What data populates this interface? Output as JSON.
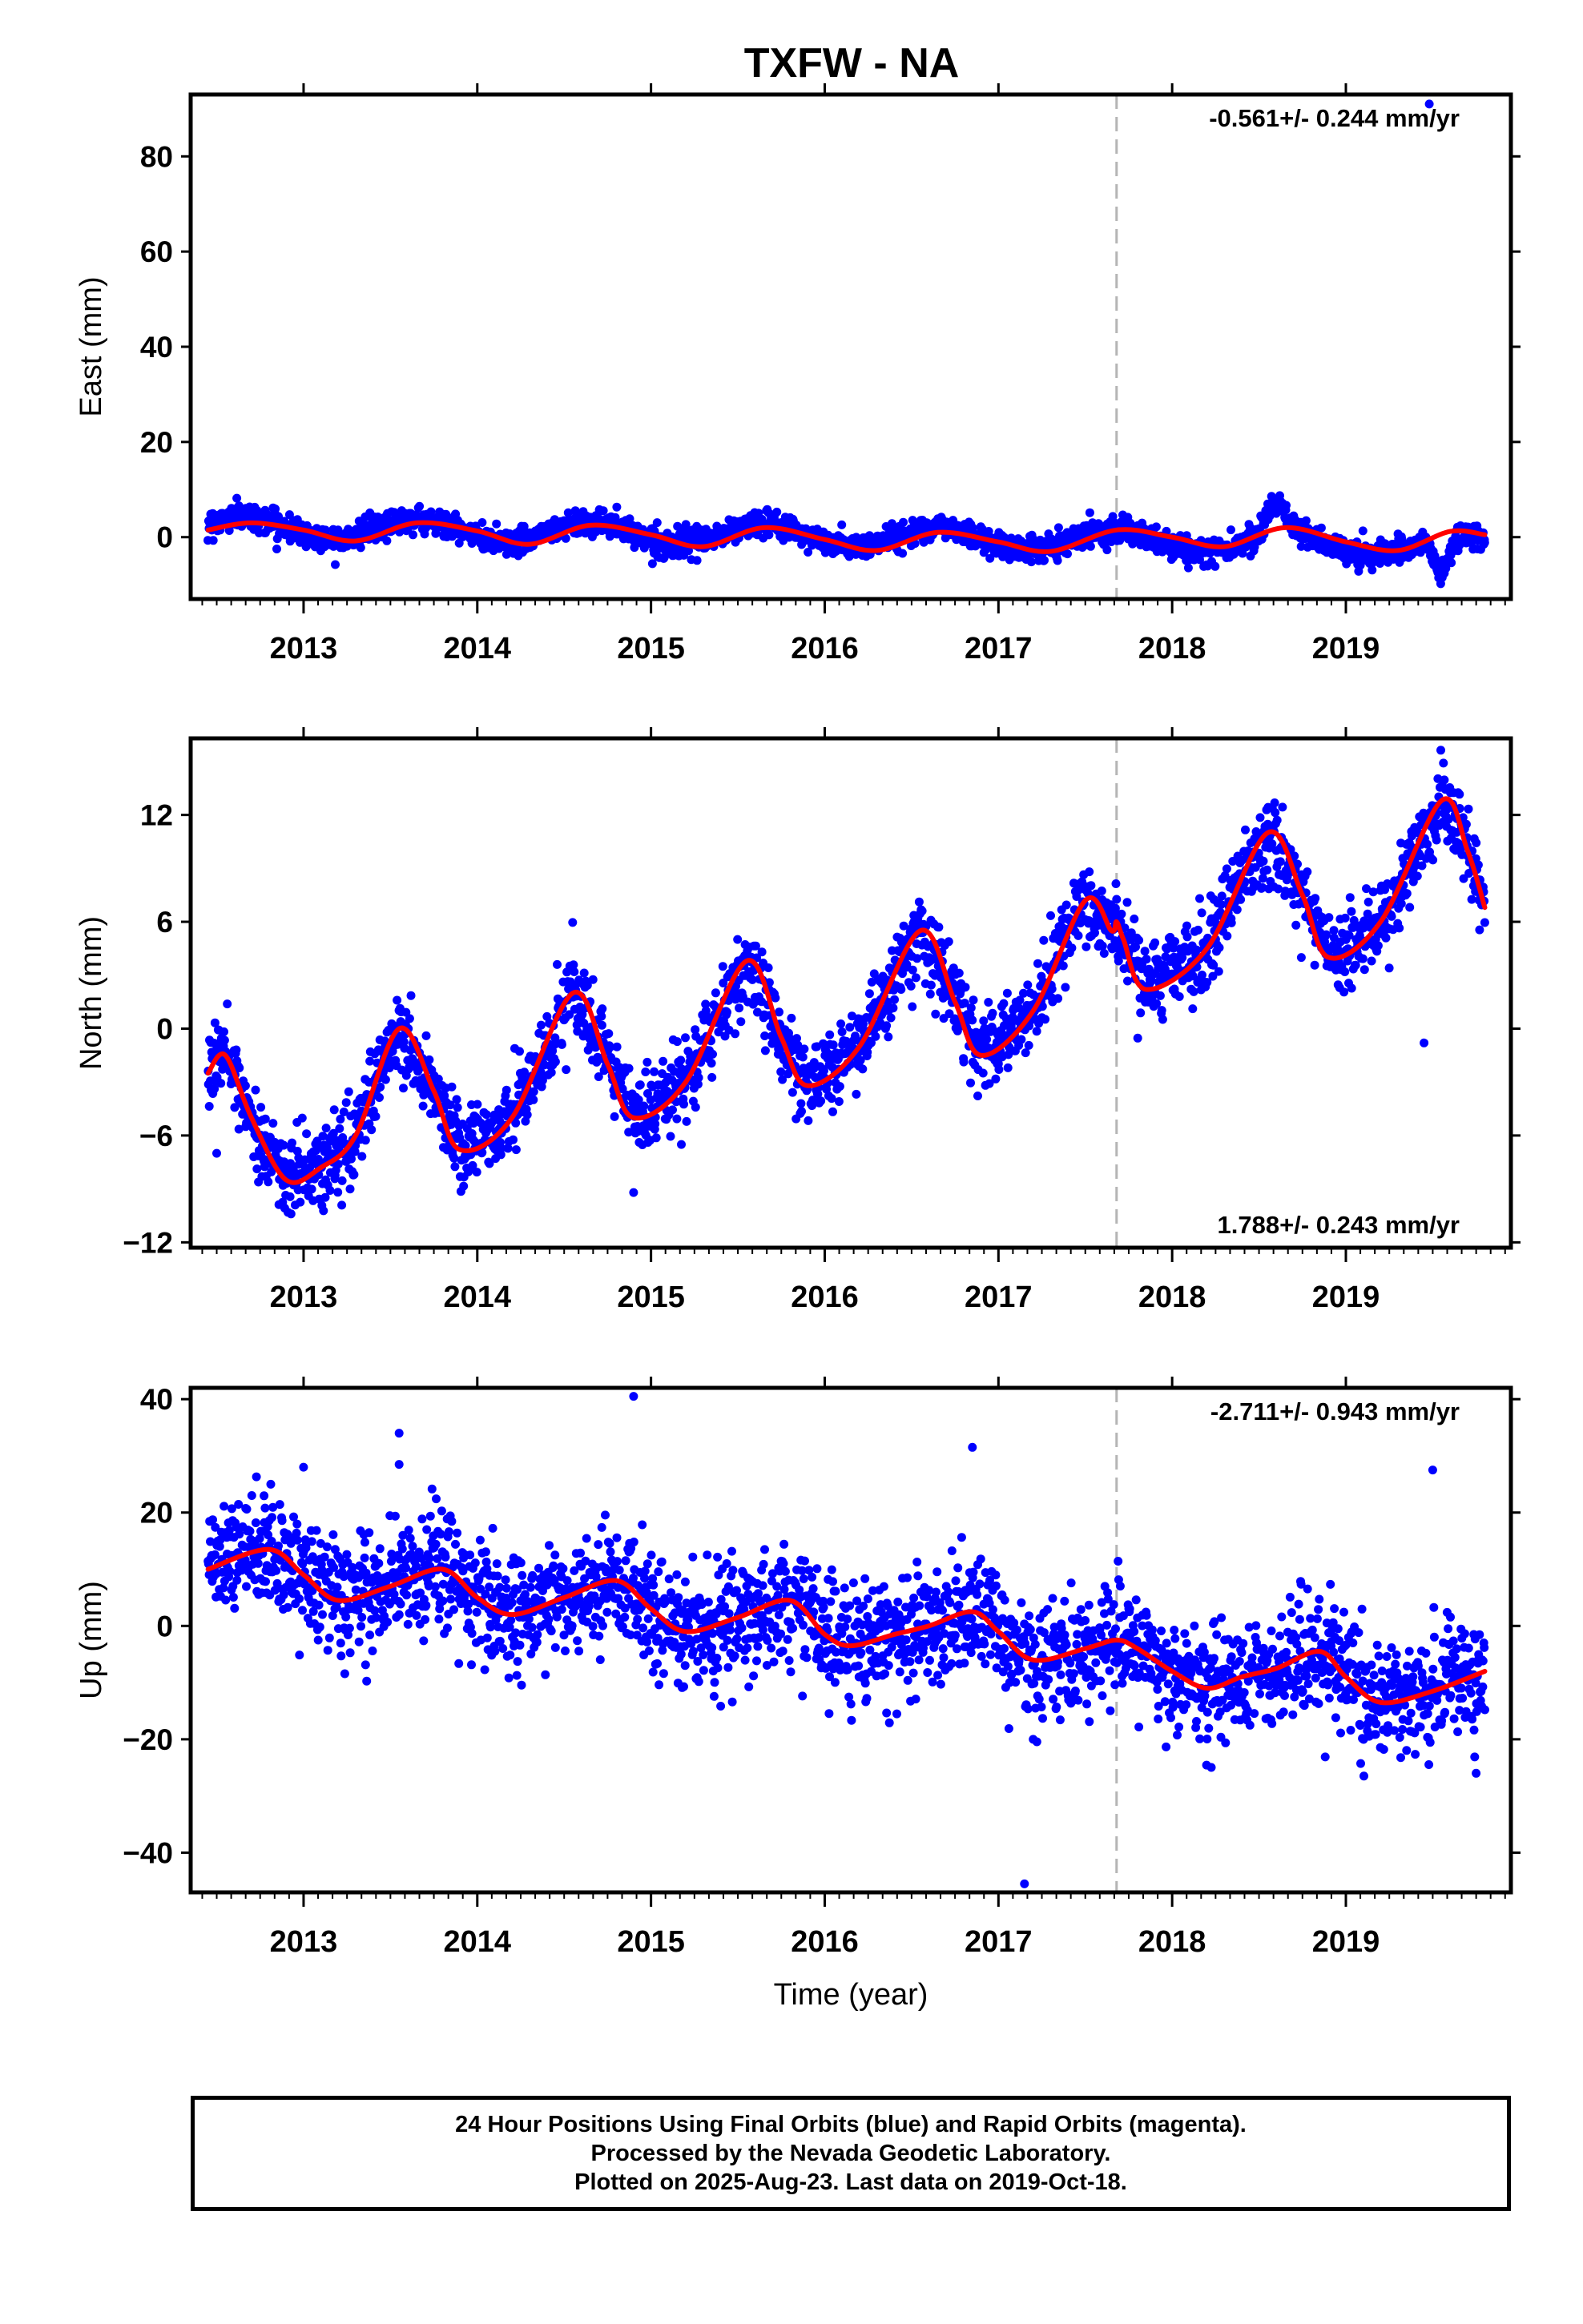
{
  "title": "TXFW - NA",
  "colors": {
    "final_points": "#0000ff",
    "fit_line": "#ff0000",
    "event_line": "#b5b5b5",
    "frame": "#000000"
  },
  "footer": {
    "line1": "24 Hour Positions Using Final Orbits (blue) and Rapid Orbits (magenta).",
    "line2": "Processed by the Nevada Geodetic Laboratory.",
    "line3": "Plotted on 2025-Aug-23. Last data on 2019-Oct-18."
  },
  "chart_data": [
    {
      "type": "scatter",
      "panel": "east",
      "ylabel": "East (mm)",
      "xlabel": "",
      "rate_label": "-0.561+/- 0.244 mm/yr",
      "rate_position": "top-right",
      "xlim": [
        2012.35,
        2019.95
      ],
      "ylim": [
        -13,
        93
      ],
      "yticks": [
        0,
        20,
        40,
        60,
        80
      ],
      "ytick_labels": [
        "0",
        "20",
        "40",
        "60",
        "80"
      ],
      "xticks": [
        2013,
        2014,
        2015,
        2016,
        2017,
        2018,
        2019
      ],
      "xtick_labels": [
        "2013",
        "2014",
        "2015",
        "2016",
        "2017",
        "2018",
        "2019"
      ],
      "event_x": 2017.68,
      "series": [
        {
          "type": "scatter",
          "x_start": 2012.45,
          "x_end": 2019.8,
          "count": 2400,
          "noise_sd": 1.3,
          "trend": -0.561,
          "ref_year": 2016.1,
          "offset": 0.2,
          "annual_amp": 2.2,
          "annual_phase_year": 2013.65,
          "features": [
            {
              "x": 2018.6,
              "width": 0.08,
              "amp": 6.5
            },
            {
              "x": 2019.55,
              "width": 0.06,
              "amp": -7.5
            }
          ],
          "outliers": [
            {
              "x": 2019.48,
              "y": 91
            }
          ]
        },
        {
          "type": "line",
          "x": [
            2012.45,
            2012.7,
            2013.0,
            2013.3,
            2013.65,
            2014.0,
            2014.3,
            2014.65,
            2015.0,
            2015.3,
            2015.65,
            2016.0,
            2016.3,
            2016.65,
            2017.0,
            2017.3,
            2017.68,
            2018.0,
            2018.3,
            2018.65,
            2019.0,
            2019.3,
            2019.6,
            2019.8
          ],
          "y": [
            1.5,
            3.0,
            1.5,
            -0.8,
            3.0,
            1.3,
            -1.5,
            2.5,
            0.5,
            -2.0,
            2.0,
            -0.5,
            -2.8,
            1.0,
            -1.0,
            -3.0,
            1.5,
            0.0,
            -2.0,
            2.0,
            -1.0,
            -2.8,
            1.2,
            0.5
          ]
        }
      ]
    },
    {
      "type": "scatter",
      "panel": "north",
      "ylabel": "North (mm)",
      "xlabel": "",
      "rate_label": "1.788+/- 0.243 mm/yr",
      "rate_position": "bottom-right",
      "xlim": [
        2012.35,
        2019.95
      ],
      "ylim": [
        -12.3,
        16.3
      ],
      "yticks": [
        -12,
        -6,
        0,
        6,
        12
      ],
      "ytick_labels": [
        "-12",
        "-6",
        "0",
        "6",
        "12"
      ],
      "xticks": [
        2013,
        2014,
        2015,
        2016,
        2017,
        2018,
        2019
      ],
      "xtick_labels": [
        "2013",
        "2014",
        "2015",
        "2016",
        "2017",
        "2018",
        "2019"
      ],
      "event_x": 2017.68,
      "series": [
        {
          "type": "scatter",
          "x_start": 2012.45,
          "x_end": 2019.8,
          "count": 2400,
          "noise_sd": 1.1,
          "follow_line": true,
          "outliers": [
            {
              "x": 2014.9,
              "y": -9.2
            },
            {
              "x": 2019.45,
              "y": -0.8
            },
            {
              "x": 2012.5,
              "y": -7.0
            }
          ]
        },
        {
          "type": "line",
          "x": [
            2012.45,
            2012.55,
            2012.7,
            2012.9,
            2013.1,
            2013.3,
            2013.55,
            2013.75,
            2013.9,
            2014.2,
            2014.55,
            2014.75,
            2014.9,
            2015.2,
            2015.55,
            2015.75,
            2015.9,
            2016.2,
            2016.55,
            2016.75,
            2016.9,
            2017.2,
            2017.5,
            2017.65,
            2017.68,
            2017.72,
            2017.85,
            2018.2,
            2018.55,
            2018.75,
            2018.9,
            2019.2,
            2019.55,
            2019.7,
            2019.8
          ],
          "y": [
            -2.5,
            -1.5,
            -5.0,
            -8.5,
            -7.8,
            -6.0,
            0.0,
            -3.5,
            -6.8,
            -5.0,
            2.0,
            -2.0,
            -5.0,
            -3.0,
            3.8,
            -0.5,
            -3.2,
            -1.0,
            5.5,
            1.5,
            -1.5,
            1.0,
            7.2,
            5.5,
            6.0,
            5.0,
            2.2,
            4.5,
            11.0,
            7.5,
            4.0,
            6.0,
            12.8,
            10.0,
            6.8
          ]
        }
      ]
    },
    {
      "type": "scatter",
      "panel": "up",
      "ylabel": "Up (mm)",
      "xlabel": "Time (year)",
      "rate_label": "-2.711+/- 0.943 mm/yr",
      "rate_position": "top-right",
      "xlim": [
        2012.35,
        2019.95
      ],
      "ylim": [
        -47,
        42
      ],
      "yticks": [
        -40,
        -20,
        0,
        20,
        40
      ],
      "ytick_labels": [
        "-40",
        "-20",
        "0",
        "20",
        "40"
      ],
      "xticks": [
        2013,
        2014,
        2015,
        2016,
        2017,
        2018,
        2019
      ],
      "xtick_labels": [
        "2013",
        "2014",
        "2015",
        "2016",
        "2017",
        "2018",
        "2019"
      ],
      "event_x": 2017.68,
      "series": [
        {
          "type": "scatter",
          "x_start": 2012.45,
          "x_end": 2019.8,
          "count": 2400,
          "noise_sd": 5.0,
          "follow_line": true,
          "outliers": [
            {
              "x": 2014.9,
              "y": 40.5
            },
            {
              "x": 2013.55,
              "y": 34.0
            },
            {
              "x": 2013.55,
              "y": 28.5
            },
            {
              "x": 2013.0,
              "y": 28.0
            },
            {
              "x": 2016.85,
              "y": 31.5
            },
            {
              "x": 2019.5,
              "y": 27.5
            },
            {
              "x": 2017.15,
              "y": -45.5
            },
            {
              "x": 2019.75,
              "y": -26.0
            },
            {
              "x": 2017.2,
              "y": -20.0
            }
          ]
        },
        {
          "type": "line",
          "x": [
            2012.45,
            2012.8,
            2013.0,
            2013.2,
            2013.5,
            2013.8,
            2014.0,
            2014.2,
            2014.5,
            2014.8,
            2015.0,
            2015.2,
            2015.5,
            2015.8,
            2016.0,
            2016.15,
            2016.4,
            2016.6,
            2016.85,
            2017.0,
            2017.2,
            2017.5,
            2017.68,
            2017.8,
            2018.0,
            2018.2,
            2018.4,
            2018.6,
            2018.85,
            2019.0,
            2019.2,
            2019.5,
            2019.8
          ],
          "y": [
            10.0,
            13.5,
            9.0,
            4.5,
            7.0,
            10.0,
            5.0,
            2.0,
            5.0,
            8.0,
            3.0,
            -1.0,
            1.5,
            4.5,
            -1.5,
            -3.5,
            -1.5,
            0.0,
            2.5,
            -1.0,
            -6.0,
            -4.0,
            -2.5,
            -4.0,
            -8.0,
            -11.0,
            -9.0,
            -7.5,
            -4.5,
            -9.0,
            -13.5,
            -11.5,
            -8.0
          ]
        }
      ]
    }
  ]
}
